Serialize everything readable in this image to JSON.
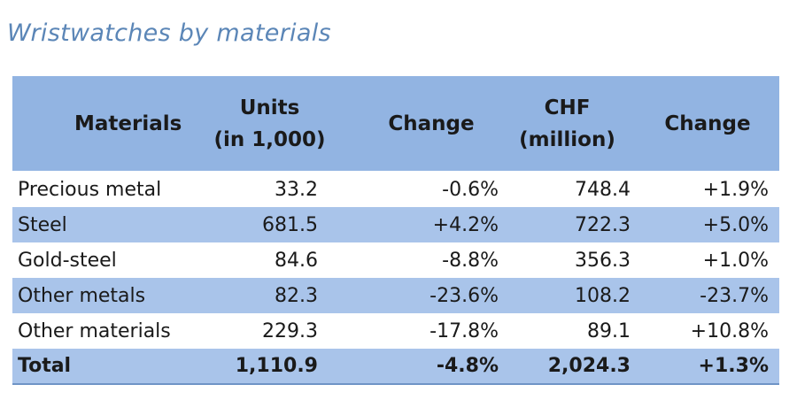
{
  "chart_data": {
    "type": "table",
    "title": "Wristwatches by materials",
    "columns": [
      [
        "Materials"
      ],
      [
        "Units",
        "(in 1,000)"
      ],
      [
        "Change"
      ],
      [
        "CHF",
        "(million)"
      ],
      [
        "Change"
      ]
    ],
    "rows": [
      {
        "material": "Precious metal",
        "units": "33.2",
        "units_change": "-0.6%",
        "chf": "748.4",
        "chf_change": "+1.9%"
      },
      {
        "material": "Steel",
        "units": "681.5",
        "units_change": "+4.2%",
        "chf": "722.3",
        "chf_change": "+5.0%"
      },
      {
        "material": "Gold-steel",
        "units": "84.6",
        "units_change": "-8.8%",
        "chf": "356.3",
        "chf_change": "+1.0%"
      },
      {
        "material": "Other metals",
        "units": "82.3",
        "units_change": "-23.6%",
        "chf": "108.2",
        "chf_change": "-23.7%"
      },
      {
        "material": "Other materials",
        "units": "229.3",
        "units_change": "-17.8%",
        "chf": "89.1",
        "chf_change": "+10.8%"
      }
    ],
    "total": {
      "material": "Total",
      "units": "1,110.9",
      "units_change": "-4.8%",
      "chf": "2,024.3",
      "chf_change": "+1.3%"
    },
    "colors": {
      "header_bg": "#92b4e2",
      "stripe_bg": "#a9c4ea",
      "title": "#5b86b7"
    }
  }
}
